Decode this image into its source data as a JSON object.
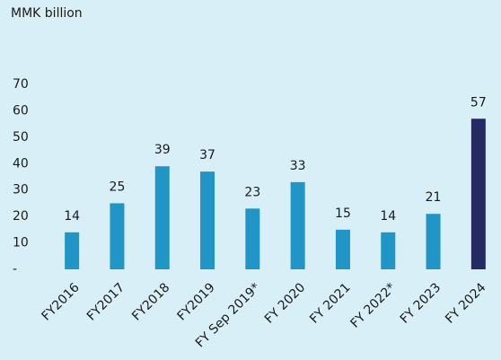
{
  "chart_data": {
    "type": "bar",
    "y_axis_label": "MMK billion",
    "categories": [
      "FY2016",
      "FY2017",
      "FY2018",
      "FY2019",
      "FY Sep 2019*",
      "FY 2020",
      "FY 2021",
      "FY 2022*",
      "FY 2023",
      "FY 2024"
    ],
    "values": [
      14,
      25,
      39,
      37,
      23,
      33,
      15,
      14,
      21,
      57
    ],
    "colors": [
      "#2196c6",
      "#2196c6",
      "#2196c6",
      "#2196c6",
      "#2196c6",
      "#2196c6",
      "#2196c6",
      "#2196c6",
      "#2196c6",
      "#252a63"
    ],
    "ylim": [
      0,
      70
    ],
    "yticks": [
      {
        "value": 0,
        "label": "-"
      },
      10,
      20,
      30,
      40,
      50,
      60,
      70
    ],
    "grid": false
  }
}
